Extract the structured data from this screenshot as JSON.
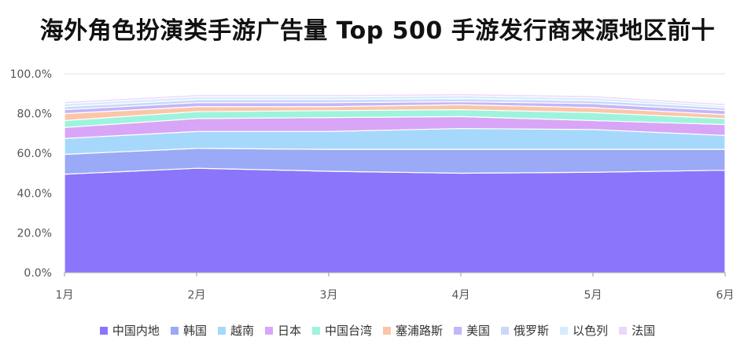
{
  "chart_data": {
    "type": "area",
    "title": "海外角色扮演类手游广告量 Top 500 手游发行商来源地区前十",
    "categories": [
      "1月",
      "2月",
      "3月",
      "4月",
      "5月",
      "6月"
    ],
    "yticks": [
      "0.0%",
      "20.0%",
      "40.0%",
      "60.0%",
      "80.0%",
      "100.0%"
    ],
    "ylim": [
      0,
      100
    ],
    "series": [
      {
        "name": "中国内地",
        "color": "#8b75fb",
        "values": [
          49.5,
          52.5,
          51.0,
          50.0,
          50.5,
          51.5
        ]
      },
      {
        "name": "韩国",
        "color": "#9aaaf6",
        "values": [
          10.0,
          10.0,
          11.0,
          12.0,
          11.5,
          10.5
        ]
      },
      {
        "name": "越南",
        "color": "#a6d8fb",
        "values": [
          8.0,
          8.5,
          9.0,
          10.5,
          10.0,
          7.0
        ]
      },
      {
        "name": "日本",
        "color": "#d9a5f7",
        "values": [
          5.5,
          6.5,
          7.0,
          6.0,
          4.5,
          5.5
        ]
      },
      {
        "name": "中国台湾",
        "color": "#9ef3dd",
        "values": [
          3.5,
          3.5,
          3.5,
          3.5,
          4.0,
          3.0
        ]
      },
      {
        "name": "塞浦路斯",
        "color": "#fbc6a8",
        "values": [
          3.5,
          2.5,
          2.0,
          2.5,
          2.5,
          2.0
        ]
      },
      {
        "name": "美国",
        "color": "#c3b6fb",
        "values": [
          2.0,
          2.0,
          2.0,
          1.5,
          2.0,
          2.0
        ]
      },
      {
        "name": "俄罗斯",
        "color": "#ccd6fb",
        "values": [
          1.5,
          1.5,
          1.5,
          1.5,
          1.5,
          1.5
        ]
      },
      {
        "name": "以色列",
        "color": "#d6ecfd",
        "values": [
          1.5,
          1.5,
          1.5,
          1.5,
          1.5,
          1.0
        ]
      },
      {
        "name": "法国",
        "color": "#edd6fb",
        "values": [
          1.0,
          1.0,
          1.0,
          1.0,
          1.0,
          1.0
        ]
      }
    ]
  }
}
